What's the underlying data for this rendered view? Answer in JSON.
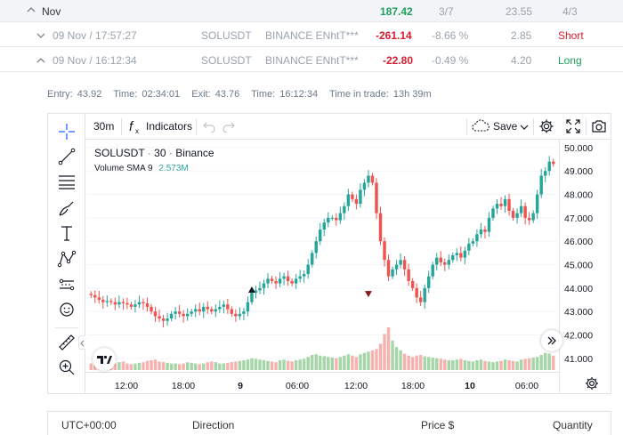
{
  "summary_row": {
    "label": "Nov",
    "pnl": "187.42",
    "win_ratio": "3/7",
    "avg": "23.55",
    "long_short": "4/3"
  },
  "trades": [
    {
      "datetime": "09 Nov / 17:57:27",
      "symbol": "SOLUSDT",
      "account": "BINANCE ENhtT***",
      "pnl": "-261.14",
      "pnl_pct": "-8.66 %",
      "ratio": "2.85",
      "side": "Short"
    },
    {
      "datetime": "09 Nov / 16:12:34",
      "symbol": "SOLUSDT",
      "account": "BINANCE ENhtT***",
      "pnl": "-22.80",
      "pnl_pct": "-0.49 %",
      "ratio": "4.20",
      "side": "Long"
    }
  ],
  "trade_info": {
    "entry_label": "Entry:",
    "entry_value": "43.92",
    "time_label": "Time:",
    "entry_time": "02:34:01",
    "exit_label": "Exit:",
    "exit_value": "43.76",
    "exit_time_label": "Time:",
    "exit_time": "16:12:34",
    "in_trade_label": "Time in trade:",
    "in_trade_value": "13h 39m"
  },
  "chart_toolbar": {
    "interval": "30m",
    "indicators_label": "Indicators",
    "save_label": "Save"
  },
  "chart_legend": {
    "symbol": "SOLUSDT",
    "interval": "30",
    "exchange": "Binance",
    "volume_label": "Volume SMA 9",
    "volume_value": "2.573M"
  },
  "chart_data": {
    "type": "candlestick",
    "y_ticks": [
      "50.000",
      "49.000",
      "48.000",
      "47.000",
      "46.000",
      "45.000",
      "44.000",
      "43.000",
      "42.000",
      "41.000"
    ],
    "ylim": [
      40.5,
      50.3
    ],
    "x_ticks": [
      "12:00",
      "18:00",
      "9",
      "06:00",
      "12:00",
      "18:00",
      "10",
      "06:00"
    ],
    "markers": [
      {
        "type": "entry",
        "direction": "up",
        "price": 43.92
      },
      {
        "type": "exit",
        "direction": "down",
        "price": 43.76
      }
    ],
    "colors": {
      "up": "#26a69a",
      "down": "#ef5350",
      "volume_up": "#a5d6a7",
      "volume_down": "#f7b2b0"
    },
    "close_path": [
      43.7,
      43.6,
      43.5,
      43.4,
      43.45,
      43.4,
      43.3,
      43.4,
      43.35,
      43.3,
      43.2,
      43.3,
      43.4,
      43.35,
      43.2,
      43.0,
      42.8,
      42.7,
      42.6,
      42.7,
      42.9,
      43.0,
      42.9,
      42.8,
      42.9,
      43.0,
      43.1,
      43.0,
      43.2,
      43.1,
      43.0,
      43.1,
      43.2,
      43.3,
      43.1,
      42.9,
      42.8,
      42.9,
      43.0,
      43.4,
      43.8,
      43.9,
      44.0,
      44.2,
      44.4,
      44.3,
      44.2,
      44.4,
      44.5,
      44.3,
      44.2,
      44.4,
      44.5,
      44.6,
      45.0,
      45.5,
      46.0,
      46.5,
      46.8,
      47.0,
      47.0,
      46.9,
      47.2,
      47.5,
      48.0,
      47.8,
      47.6,
      48.2,
      48.5,
      48.8,
      48.5,
      47.2,
      46.0,
      45.2,
      44.5,
      44.8,
      45.0,
      45.2,
      44.8,
      44.3,
      44.0,
      43.6,
      43.4,
      44.0,
      44.5,
      45.0,
      45.3,
      45.1,
      45.0,
      45.2,
      45.4,
      45.5,
      45.3,
      45.6,
      45.9,
      46.0,
      46.3,
      46.5,
      46.4,
      47.0,
      47.4,
      47.6,
      47.5,
      47.8,
      47.3,
      47.0,
      47.2,
      47.5,
      47.0,
      46.9,
      47.2,
      48.0,
      48.8,
      49.0,
      49.4,
      49.3
    ],
    "volume": [
      1,
      1.2,
      0.9,
      1,
      1.1,
      0.8,
      1,
      1.2,
      1.3,
      1,
      0.9,
      1,
      1.1,
      1.2,
      1.4,
      1.5,
      1.6,
      1.3,
      1.2,
      1.1,
      1,
      1,
      0.9,
      1,
      1.2,
      1.1,
      1,
      0.9,
      1,
      1.2,
      1.3,
      1.2,
      1,
      1,
      1.1,
      1.2,
      1.3,
      1.4,
      1.5,
      1.6,
      1.8,
      1.7,
      1.6,
      1.5,
      1.4,
      1.3,
      1.2,
      1.5,
      1.6,
      1.4,
      1.3,
      1.5,
      1.6,
      1.7,
      2,
      2.3,
      2.4,
      2.2,
      2.1,
      2,
      1.9,
      1.8,
      2,
      2.2,
      2.4,
      2.2,
      2,
      2.4,
      2.6,
      2.8,
      3,
      3.2,
      4,
      5.5,
      6.5,
      4.5,
      3.5,
      3,
      2.5,
      2.2,
      2,
      2.2,
      2.3,
      2.1,
      2,
      1.9,
      1.8,
      1.7,
      1.6,
      1.5,
      1.5,
      1.6,
      1.7,
      1.5,
      1.4,
      1.3,
      1.5,
      1.6,
      1.4,
      1.3,
      1.2,
      1.3,
      1.4,
      1.6,
      1.5,
      1.4,
      1.3,
      1.6,
      1.7,
      1.8,
      1.9,
      2,
      2.3,
      2.6,
      2.5,
      2.2
    ]
  },
  "positions_header": {
    "timezone": "UTC+00:00",
    "direction": "Direction",
    "price": "Price $",
    "quantity": "Quantity"
  }
}
